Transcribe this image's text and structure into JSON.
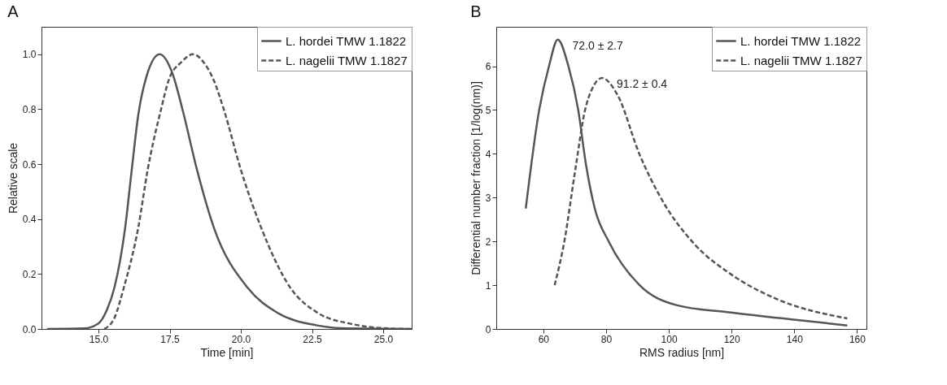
{
  "chart_data": [
    {
      "type": "line",
      "title": "A",
      "xlabel": "Time [min]",
      "ylabel": "Relative scale",
      "xlim": [
        13,
        26
      ],
      "ylim": [
        0,
        1.1
      ],
      "xticks": [
        {
          "value": 15,
          "label": "15.0"
        },
        {
          "value": 17.5,
          "label": "17.5"
        },
        {
          "value": 20,
          "label": "20.0"
        },
        {
          "value": 22.5,
          "label": "22.5"
        },
        {
          "value": 25,
          "label": "25.0"
        }
      ],
      "yticks": [
        {
          "value": 0,
          "label": "0.0"
        },
        {
          "value": 0.2,
          "label": "0.2"
        },
        {
          "value": 0.4,
          "label": "0.4"
        },
        {
          "value": 0.6,
          "label": "0.6"
        },
        {
          "value": 0.8,
          "label": "0.8"
        },
        {
          "value": 1,
          "label": "1.0"
        }
      ],
      "grid": false,
      "legend": "top right",
      "marker": "none",
      "series": [
        {
          "name": "L. hordei TMW 1.1822",
          "color": "#555555",
          "line_style": "solid",
          "x": [
            13.2,
            14.5,
            15.0,
            15.3,
            15.56,
            15.94,
            16.17,
            16.4,
            16.69,
            17.15,
            17.6,
            17.95,
            18.46,
            19.05,
            20.24,
            21.27,
            22.68,
            23.5,
            26
          ],
          "values": [
            0,
            0.002,
            0.02,
            0.07,
            0.15,
            0.37,
            0.58,
            0.78,
            0.92,
            1.0,
            0.93,
            0.8,
            0.58,
            0.37,
            0.15,
            0.06,
            0.013,
            0.003,
            0
          ]
        },
        {
          "name": "L. nagelii TMW 1.1827",
          "color": "#555555",
          "line_style": "dashed",
          "x": [
            15.2,
            15.56,
            15.89,
            16.4,
            16.73,
            17.2,
            17.48,
            17.9,
            18.32,
            18.7,
            19.03,
            19.4,
            20.0,
            20.71,
            21.74,
            22.68,
            23.9,
            25,
            26
          ],
          "values": [
            0,
            0.04,
            0.15,
            0.37,
            0.58,
            0.8,
            0.91,
            0.97,
            1.0,
            0.97,
            0.91,
            0.8,
            0.58,
            0.37,
            0.15,
            0.06,
            0.018,
            0.003,
            0
          ]
        }
      ]
    },
    {
      "type": "line",
      "title": "B",
      "xlabel": "RMS radius [nm]",
      "ylabel": "Differential number fraction [1/log(nm)]",
      "xlim": [
        45,
        163
      ],
      "ylim": [
        0,
        6.9
      ],
      "xticks": [
        60,
        80,
        100,
        120,
        140,
        160
      ],
      "yticks": [
        0,
        1,
        2,
        3,
        4,
        5,
        6
      ],
      "grid": false,
      "legend": "top right",
      "marker": "none",
      "annotations": [
        "72.0 ± 2.7",
        "91.2 ± 0.4"
      ],
      "series": [
        {
          "name": "L. hordei TMW 1.1822",
          "color": "#555555",
          "line_style": "solid",
          "x": [
            54.4,
            58.7,
            61.8,
            64.6,
            68.0,
            71.1,
            73.6,
            76.4,
            80.9,
            90.7,
            102.2,
            119.1,
            140.4,
            156.9
          ],
          "values": [
            2.75,
            5.01,
            6.0,
            6.61,
            6.0,
            5.01,
            3.75,
            2.75,
            1.99,
            1.0,
            0.55,
            0.38,
            0.21,
            0.08
          ]
        },
        {
          "name": "L. nagelii TMW 1.1827",
          "color": "#555555",
          "line_style": "dashed",
          "x": [
            63.6,
            66.7,
            70.2,
            73.3,
            75.6,
            78.7,
            83.6,
            90.7,
            97.8,
            108.4,
            120.0,
            134.2,
            156.9
          ],
          "values": [
            1.0,
            2.0,
            3.64,
            5.0,
            5.49,
            5.73,
            5.35,
            3.98,
            2.95,
            1.92,
            1.24,
            0.69,
            0.24
          ]
        }
      ]
    }
  ]
}
